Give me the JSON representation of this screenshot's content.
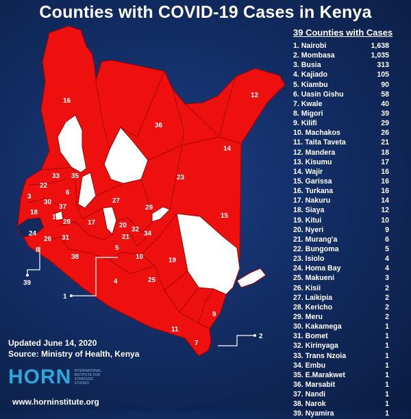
{
  "title": "Counties with COVID-19 Cases in Kenya",
  "list": {
    "title": "39 Counties with Cases",
    "counties": [
      {
        "label": "1. Nairobi",
        "cases": "1,638"
      },
      {
        "label": "2. Mombasa",
        "cases": "1,035"
      },
      {
        "label": "3. Busia",
        "cases": "313"
      },
      {
        "label": "4. Kajiado",
        "cases": "105"
      },
      {
        "label": "5. Kiambu",
        "cases": "90"
      },
      {
        "label": "6. Uasin Gishu",
        "cases": "58"
      },
      {
        "label": "7. Kwale",
        "cases": "40"
      },
      {
        "label": "8. Migori",
        "cases": "39"
      },
      {
        "label": "9. Kilifi",
        "cases": "29"
      },
      {
        "label": "10. Machakos",
        "cases": "26"
      },
      {
        "label": "11. Taita Taveta",
        "cases": "21"
      },
      {
        "label": "12. Mandera",
        "cases": "18"
      },
      {
        "label": "13. Kisumu",
        "cases": "17"
      },
      {
        "label": "14. Wajir",
        "cases": "16"
      },
      {
        "label": "15. Garissa",
        "cases": "16"
      },
      {
        "label": "16. Turkana",
        "cases": "16"
      },
      {
        "label": "17. Nakuru",
        "cases": "14"
      },
      {
        "label": "18. Siaya",
        "cases": "12"
      },
      {
        "label": "19. Kitui",
        "cases": "10"
      },
      {
        "label": "20. Nyeri",
        "cases": "9"
      },
      {
        "label": "21. Murang'a",
        "cases": "6"
      },
      {
        "label": "22. Bungoma",
        "cases": "5"
      },
      {
        "label": "23. Isiolo",
        "cases": "4"
      },
      {
        "label": "24. Homa Bay",
        "cases": "4"
      },
      {
        "label": "25. Makueni",
        "cases": "3"
      },
      {
        "label": "26. Kisii",
        "cases": "2"
      },
      {
        "label": "27. Laikipia",
        "cases": "2"
      },
      {
        "label": "28. Kericho",
        "cases": "2"
      },
      {
        "label": "29. Meru",
        "cases": "2"
      },
      {
        "label": "30. Kakamega",
        "cases": "1"
      },
      {
        "label": "31. Bomet",
        "cases": "1"
      },
      {
        "label": "32. Kirinyaga",
        "cases": "1"
      },
      {
        "label": "33. Trans Nzoia",
        "cases": "1"
      },
      {
        "label": "34. Embu",
        "cases": "1"
      },
      {
        "label": "35. E.Marakwet",
        "cases": "1"
      },
      {
        "label": "36. Marsabit",
        "cases": "1"
      },
      {
        "label": "37. Nandi",
        "cases": "1"
      },
      {
        "label": "38. Narok",
        "cases": "1"
      },
      {
        "label": "39. Nyamira",
        "cases": "1"
      }
    ]
  },
  "map": {
    "labels": [
      "16",
      "36",
      "12",
      "14",
      "23",
      "15",
      "33",
      "35",
      "22",
      "3",
      "30",
      "37",
      "6",
      "18",
      "13",
      "28",
      "17",
      "27",
      "29",
      "20",
      "32",
      "34",
      "21",
      "24",
      "26",
      "31",
      "8",
      "5",
      "10",
      "38",
      "19",
      "4",
      "25",
      "9",
      "11",
      "7"
    ],
    "callouts": {
      "nairobi": "1",
      "mombasa": "2",
      "nyamira": "39"
    },
    "colors": {
      "affected": "#ee0f0f",
      "unaffected": "#ffffff",
      "borders": "#9e0000",
      "ocean": "#112a5e"
    }
  },
  "footer": {
    "updated": "Updated June 14, 2020",
    "source": "Source: Ministry of Health, Kenya",
    "logo_word": "HORN",
    "logo_text": "INTERNATIONAL INSTITUTE FOR STRATEGIC STUDIES",
    "website": "www.horninstitute.org"
  }
}
